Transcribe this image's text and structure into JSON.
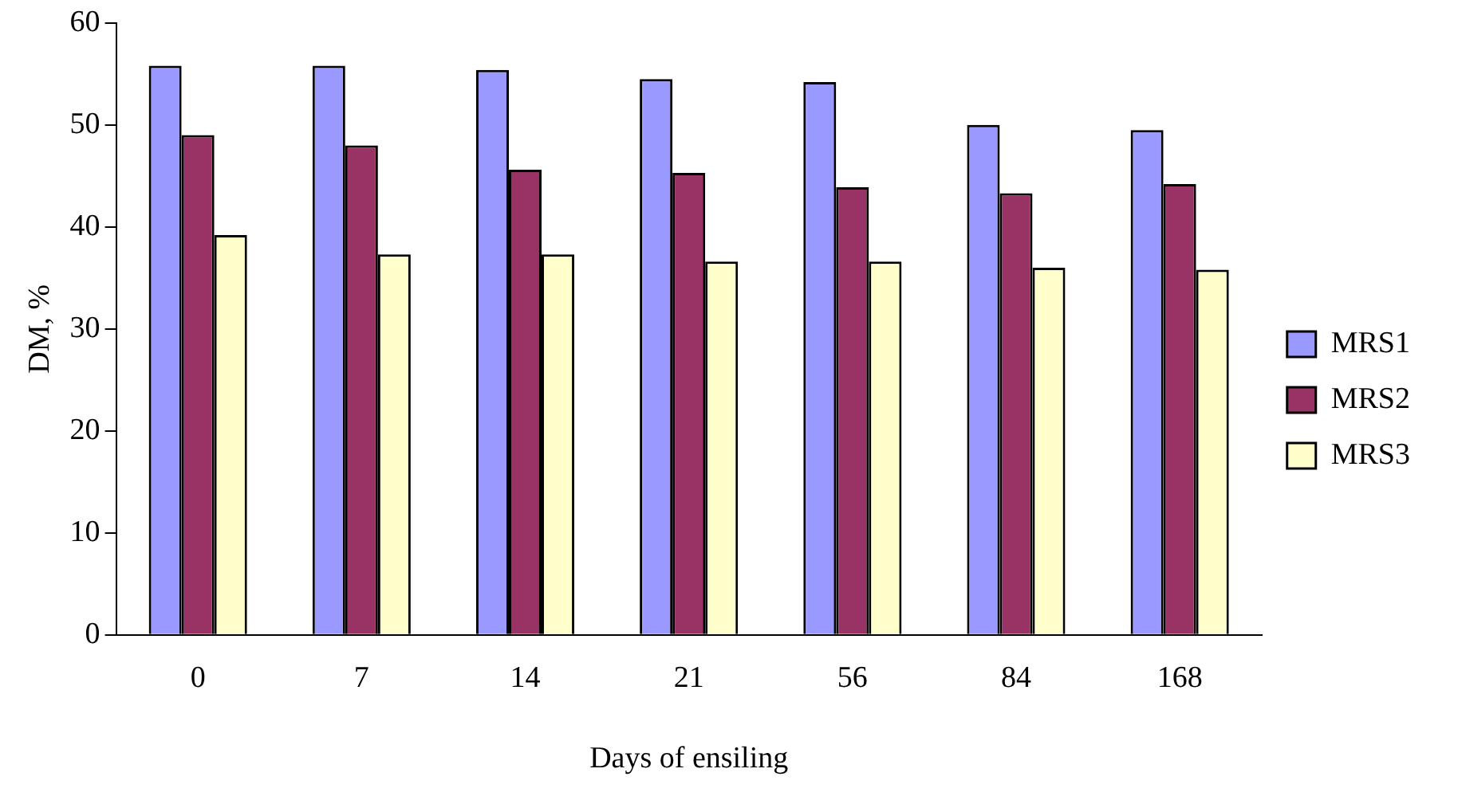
{
  "chart_data": {
    "type": "bar",
    "xlabel": "Days of ensiling",
    "ylabel": "DM, %",
    "categories": [
      "0",
      "7",
      "14",
      "21",
      "56",
      "84",
      "168"
    ],
    "series": [
      {
        "name": "MRS1",
        "color": "#9999ff",
        "values": [
          55.8,
          55.8,
          55.4,
          54.5,
          54.2,
          50.0,
          49.5
        ]
      },
      {
        "name": "MRS2",
        "color": "#993366",
        "values": [
          49.0,
          48.0,
          45.6,
          45.3,
          43.9,
          43.3,
          44.2
        ]
      },
      {
        "name": "MRS3",
        "color": "#ffffcc",
        "values": [
          39.2,
          37.3,
          37.3,
          36.6,
          36.6,
          36.0,
          35.8
        ]
      }
    ],
    "ylim": [
      0,
      60
    ],
    "yticks": [
      0,
      10,
      20,
      30,
      40,
      50,
      60
    ],
    "grid": false,
    "legend": "right"
  }
}
